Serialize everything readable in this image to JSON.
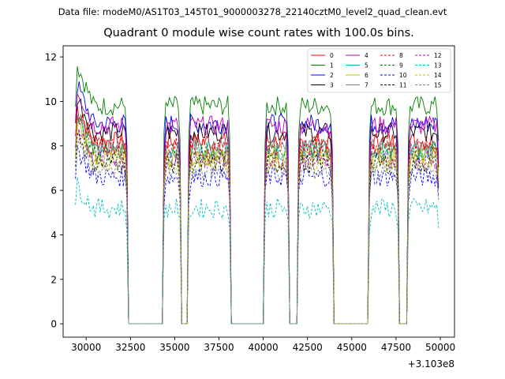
{
  "chart_data": {
    "type": "line",
    "suptitle": "Data file: modeM0/AS1T03_145T01_9000003278_22140cztM0_level2_quad_clean.evt",
    "title": "Quadrant 0 module wise count rates with 100.0s bins.",
    "xlabel": "",
    "ylabel": "",
    "x_offset_label": "+3.103e8",
    "xlim": [
      28700,
      50800
    ],
    "ylim": [
      -0.6,
      12.5
    ],
    "xticks": [
      "30000",
      "32500",
      "35000",
      "37500",
      "40000",
      "42500",
      "45000",
      "47500",
      "50000"
    ],
    "yticks": [
      "0",
      "2",
      "4",
      "6",
      "8",
      "10",
      "12"
    ],
    "grid": false,
    "legend_position": "top-right",
    "segments": [
      {
        "start": 29400,
        "end": 32300
      },
      {
        "start": 34400,
        "end": 35300
      },
      {
        "start": 35800,
        "end": 38100
      },
      {
        "start": 40100,
        "end": 41400
      },
      {
        "start": 42000,
        "end": 43900
      },
      {
        "start": 46000,
        "end": 47600
      },
      {
        "start": 48200,
        "end": 49900
      }
    ],
    "gap_value": 0,
    "series": [
      {
        "name": "0",
        "color": "#ff0000",
        "style": "solid",
        "level": 8.2
      },
      {
        "name": "1",
        "color": "#008000",
        "style": "solid",
        "level": 9.8
      },
      {
        "name": "2",
        "color": "#0000ff",
        "style": "solid",
        "level": 9.0
      },
      {
        "name": "3",
        "color": "#000000",
        "style": "solid",
        "level": 8.6
      },
      {
        "name": "4",
        "color": "#bf00bf",
        "style": "solid",
        "level": 8.9
      },
      {
        "name": "5",
        "color": "#00bfbf",
        "style": "solid",
        "level": 7.8
      },
      {
        "name": "6",
        "color": "#bfbf00",
        "style": "solid",
        "level": 7.5
      },
      {
        "name": "7",
        "color": "#808080",
        "style": "solid",
        "level": 7.9
      },
      {
        "name": "8",
        "color": "#ff0000",
        "style": "dashed",
        "level": 8.0
      },
      {
        "name": "9",
        "color": "#008000",
        "style": "dashed",
        "level": 7.7
      },
      {
        "name": "10",
        "color": "#0000ff",
        "style": "dashed",
        "level": 6.6
      },
      {
        "name": "11",
        "color": "#000000",
        "style": "dashed",
        "level": 7.2
      },
      {
        "name": "12",
        "color": "#bf00bf",
        "style": "dashed",
        "level": 7.4
      },
      {
        "name": "13",
        "color": "#00bfbf",
        "style": "dashed",
        "level": 5.2
      },
      {
        "name": "14",
        "color": "#bfbf00",
        "style": "dashed",
        "level": 7.3
      },
      {
        "name": "15",
        "color": "#808080",
        "style": "dashed",
        "level": 6.9
      }
    ]
  }
}
